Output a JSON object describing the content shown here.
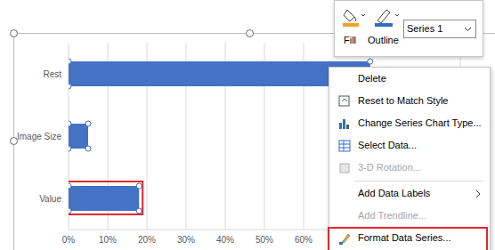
{
  "chart_data": {
    "type": "bar",
    "orientation": "horizontal",
    "categories": [
      "Value",
      "Image Size",
      "Rest"
    ],
    "values": [
      18,
      5,
      77
    ],
    "color": "#4472c4",
    "xlim": [
      0,
      100
    ],
    "xticks": [
      {
        "value": 0,
        "label": "0%"
      },
      {
        "value": 10,
        "label": "10%"
      },
      {
        "value": 20,
        "label": "20%"
      },
      {
        "value": 30,
        "label": "30%"
      },
      {
        "value": 40,
        "label": "40%"
      },
      {
        "value": 50,
        "label": "50%"
      },
      {
        "value": 60,
        "label": "60%"
      }
    ],
    "grid": true
  },
  "toolbar": {
    "buttons": [
      "Fill",
      "Outline"
    ],
    "series_select": "Series 1"
  },
  "context_menu": {
    "items": [
      {
        "label": "Delete",
        "disabled": false,
        "submenu": false,
        "separator_before": false
      },
      {
        "label": "Reset to Match Style",
        "disabled": false,
        "submenu": false,
        "separator_before": false
      },
      {
        "label": "Change Series Chart Type...",
        "disabled": false,
        "submenu": false,
        "separator_before": false
      },
      {
        "label": "Select Data...",
        "disabled": false,
        "submenu": false,
        "separator_before": false
      },
      {
        "label": "3-D Rotation...",
        "disabled": true,
        "submenu": false,
        "separator_before": false
      },
      {
        "label": "Add Data Labels",
        "disabled": false,
        "submenu": true,
        "separator_before": true
      },
      {
        "label": "Add Trendline...",
        "disabled": true,
        "submenu": false,
        "separator_before": false
      },
      {
        "label": "Format Data Series...",
        "disabled": false,
        "submenu": false,
        "separator_before": false
      }
    ]
  }
}
